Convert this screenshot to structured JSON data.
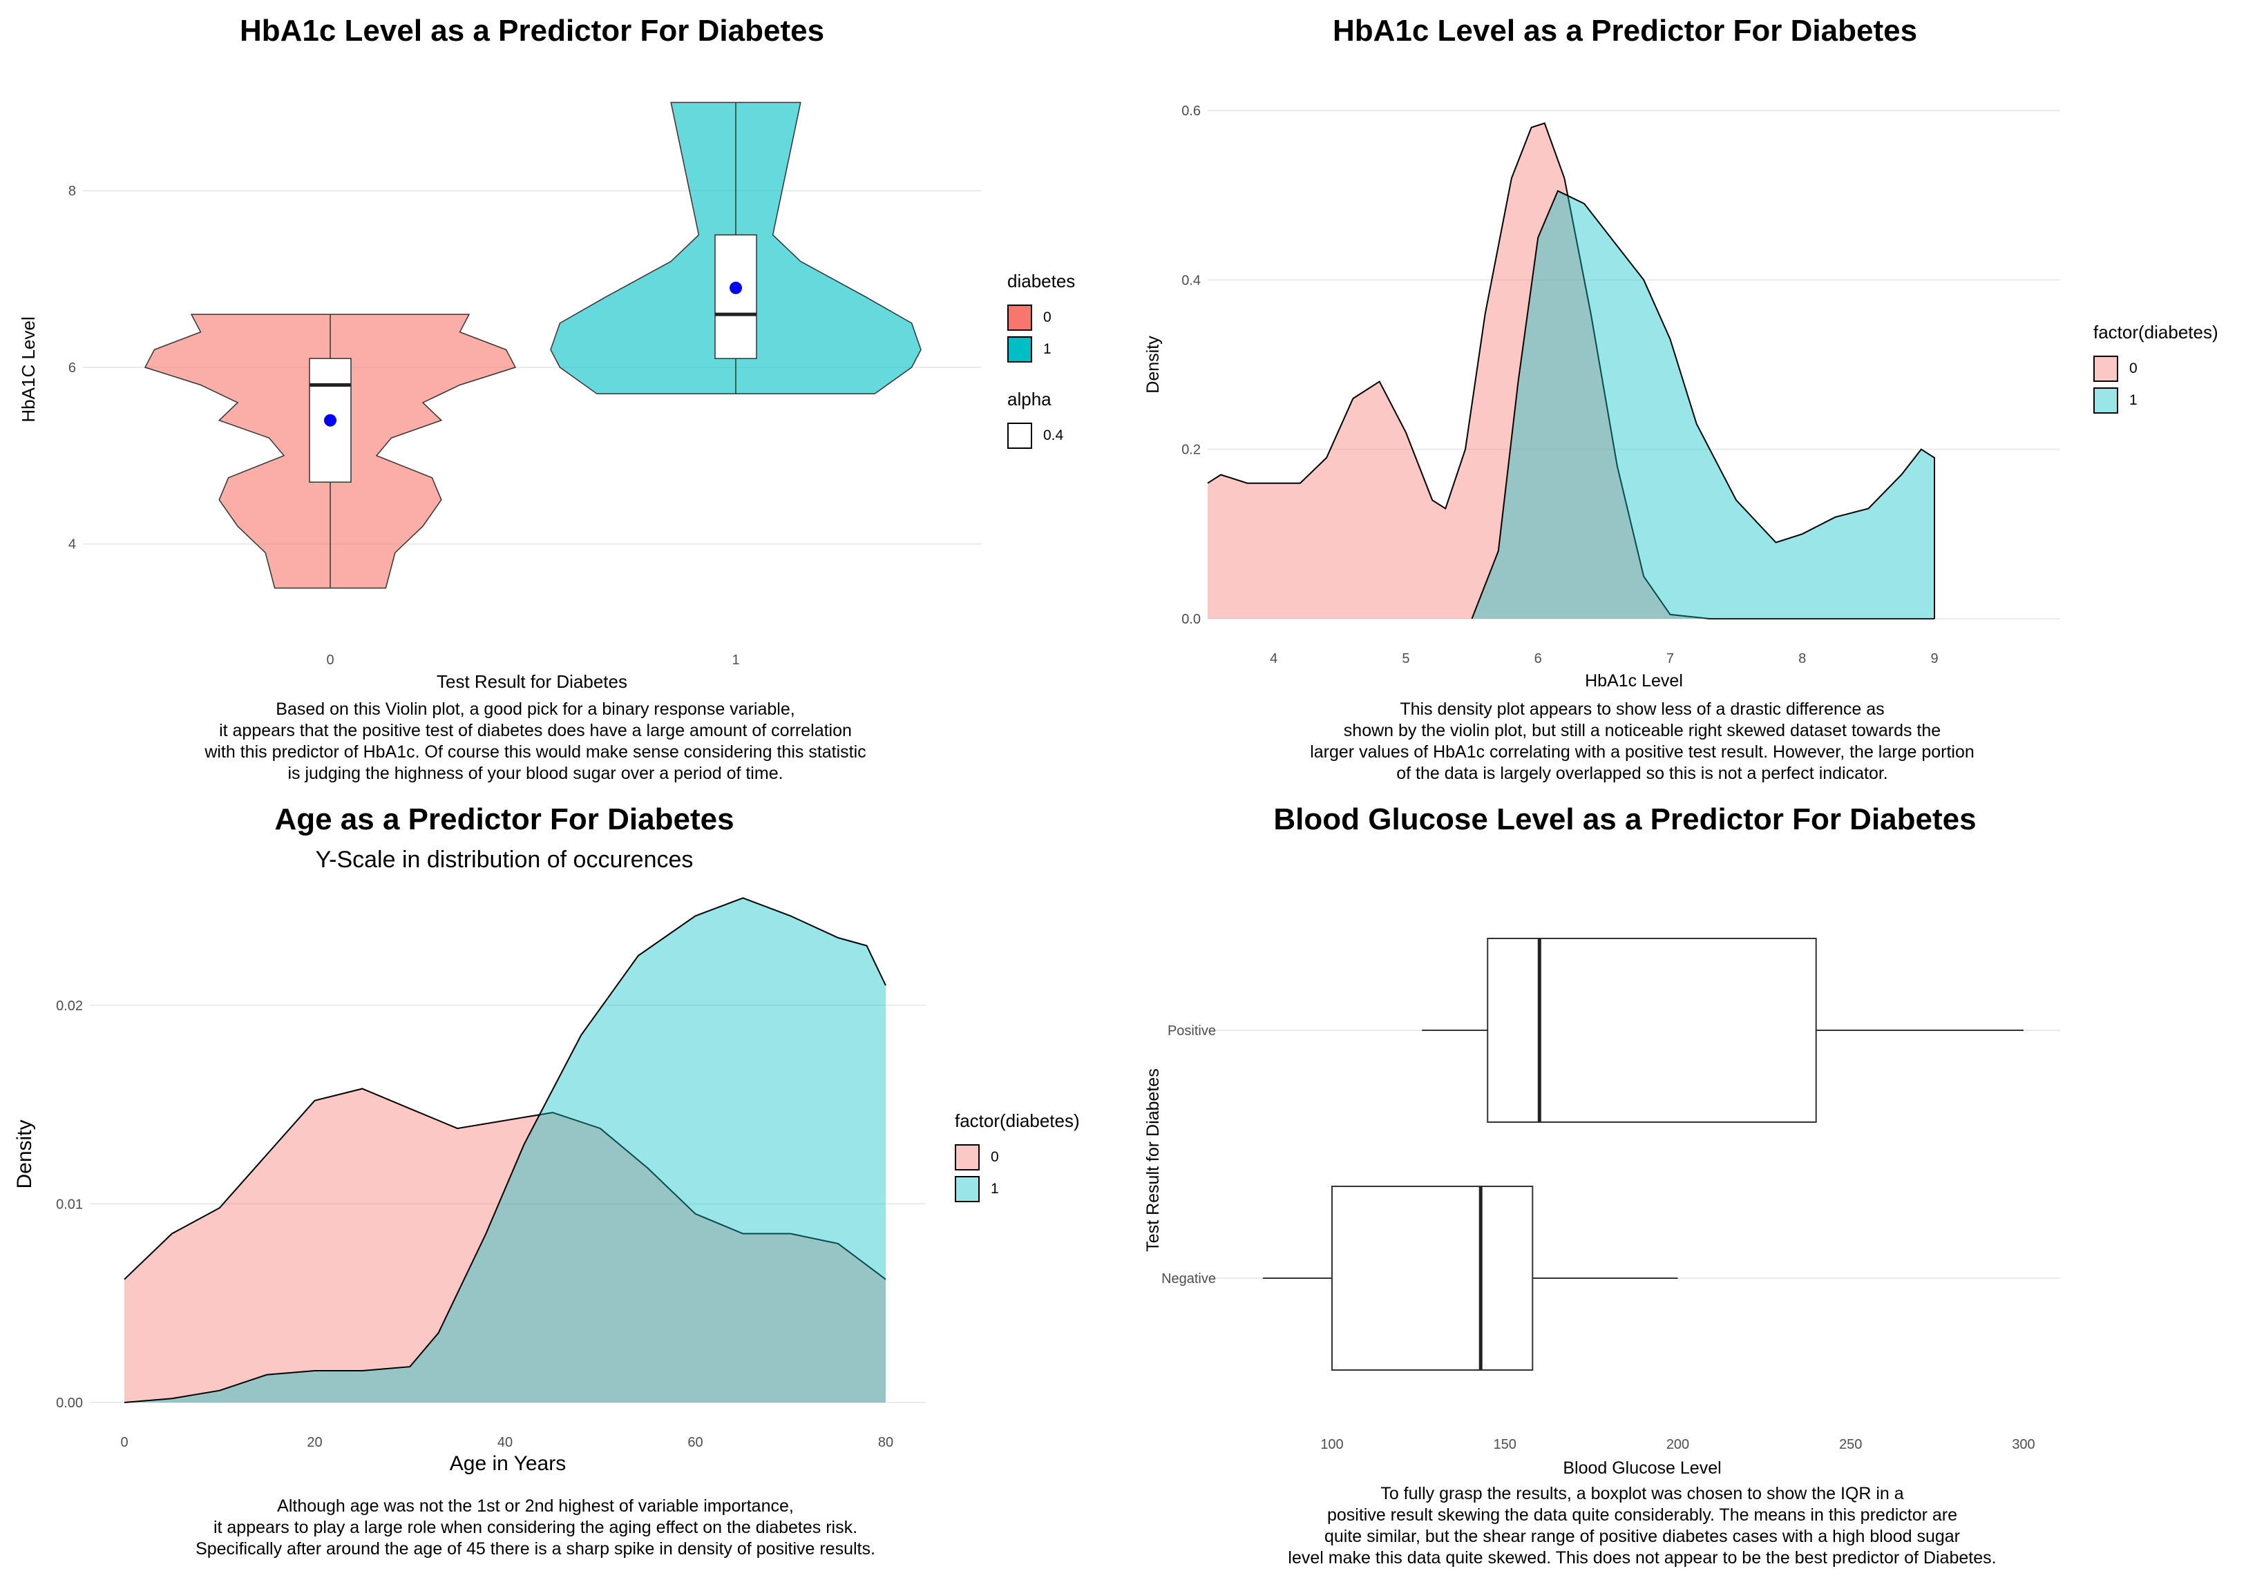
{
  "chart_data": [
    {
      "id": "violin",
      "type": "violin",
      "title": "HbA1c Level as a Predictor For Diabetes",
      "xlabel": "Test Result for Diabetes",
      "ylabel": "HbA1C Level",
      "categories": [
        "0",
        "1"
      ],
      "yticks": [
        4,
        6,
        8
      ],
      "ylim": [
        3.2,
        9.3
      ],
      "colors": {
        "0": "#F8766D",
        "1": "#00BFC4"
      },
      "series": [
        {
          "name": "0",
          "min": 3.5,
          "q1": 4.7,
          "median": 5.8,
          "q3": 6.1,
          "max": 6.6,
          "mean": 5.4,
          "profile": [
            [
              3.5,
              0.3
            ],
            [
              3.9,
              0.35
            ],
            [
              4.2,
              0.5
            ],
            [
              4.5,
              0.6
            ],
            [
              4.75,
              0.55
            ],
            [
              5.0,
              0.25
            ],
            [
              5.2,
              0.33
            ],
            [
              5.4,
              0.6
            ],
            [
              5.6,
              0.5
            ],
            [
              5.8,
              0.7
            ],
            [
              6.0,
              1.0
            ],
            [
              6.2,
              0.95
            ],
            [
              6.4,
              0.7
            ],
            [
              6.6,
              0.75
            ]
          ]
        },
        {
          "name": "1",
          "min": 5.7,
          "q1": 6.1,
          "median": 6.6,
          "q3": 7.5,
          "max": 9.0,
          "mean": 6.9,
          "profile": [
            [
              5.7,
              0.75
            ],
            [
              6.0,
              0.95
            ],
            [
              6.2,
              1.0
            ],
            [
              6.5,
              0.95
            ],
            [
              6.8,
              0.7
            ],
            [
              7.2,
              0.35
            ],
            [
              7.5,
              0.2
            ],
            [
              8.0,
              0.25
            ],
            [
              8.5,
              0.3
            ],
            [
              9.0,
              0.35
            ]
          ]
        }
      ],
      "legend": {
        "title": "diabetes",
        "items": [
          "0",
          "1"
        ],
        "alpha_title": "alpha",
        "alpha_value": "0.4"
      },
      "caption": [
        "Based on this Violin plot, a good pick for a binary response variable,",
        "it appears that the positive test of diabetes does have a large amount of correlation",
        "with this predictor of HbA1c. Of course this would make sense considering this statistic",
        "is judging the highness of your blood sugar over a period of time."
      ]
    },
    {
      "id": "hba1c_density",
      "type": "area",
      "title": "HbA1c Level as a Predictor For Diabetes",
      "xlabel": "HbA1c Level",
      "ylabel": "Density",
      "xlim": [
        3.5,
        9.0
      ],
      "ylim": [
        0,
        0.6
      ],
      "xticks": [
        4,
        5,
        6,
        7,
        8,
        9
      ],
      "yticks": [
        "0.0",
        "0.2",
        "0.4",
        "0.6"
      ],
      "series": [
        {
          "name": "0",
          "color": "#F8766D",
          "points": [
            [
              3.5,
              0.16
            ],
            [
              3.6,
              0.17
            ],
            [
              3.8,
              0.16
            ],
            [
              4.0,
              0.16
            ],
            [
              4.2,
              0.16
            ],
            [
              4.4,
              0.19
            ],
            [
              4.6,
              0.26
            ],
            [
              4.8,
              0.28
            ],
            [
              5.0,
              0.22
            ],
            [
              5.2,
              0.14
            ],
            [
              5.3,
              0.13
            ],
            [
              5.45,
              0.2
            ],
            [
              5.6,
              0.36
            ],
            [
              5.8,
              0.52
            ],
            [
              5.95,
              0.58
            ],
            [
              6.05,
              0.585
            ],
            [
              6.2,
              0.52
            ],
            [
              6.4,
              0.36
            ],
            [
              6.6,
              0.18
            ],
            [
              6.8,
              0.05
            ],
            [
              7.0,
              0.005
            ],
            [
              7.3,
              0.0
            ],
            [
              9.0,
              0.0
            ]
          ]
        },
        {
          "name": "1",
          "color": "#00BFC4",
          "points": [
            [
              5.5,
              0.0
            ],
            [
              5.7,
              0.08
            ],
            [
              5.85,
              0.28
            ],
            [
              6.0,
              0.45
            ],
            [
              6.15,
              0.505
            ],
            [
              6.35,
              0.49
            ],
            [
              6.6,
              0.44
            ],
            [
              6.8,
              0.4
            ],
            [
              7.0,
              0.33
            ],
            [
              7.2,
              0.23
            ],
            [
              7.5,
              0.14
            ],
            [
              7.8,
              0.09
            ],
            [
              8.0,
              0.1
            ],
            [
              8.25,
              0.12
            ],
            [
              8.5,
              0.13
            ],
            [
              8.75,
              0.17
            ],
            [
              8.9,
              0.2
            ],
            [
              9.0,
              0.19
            ],
            [
              9.0,
              0.0
            ]
          ]
        }
      ],
      "legend": {
        "title": "factor(diabetes)",
        "items": [
          "0",
          "1"
        ]
      },
      "caption": [
        "This density plot appears to show less of a drastic difference as",
        "shown by the violin plot, but still a noticeable right skewed dataset towards the",
        "larger values of HbA1c correlating with a positive test result. However, the large portion",
        "of the data is largely overlapped so this is not a perfect indicator."
      ]
    },
    {
      "id": "age_density",
      "type": "area",
      "title": "Age as a Predictor For Diabetes",
      "subtitle": "Y-Scale in distribution of occurences",
      "xlabel": "Age in Years",
      "ylabel": "Density",
      "xlim": [
        0,
        80
      ],
      "ylim": [
        0,
        0.025
      ],
      "xticks": [
        0,
        20,
        40,
        60,
        80
      ],
      "yticks": [
        "0.00",
        "0.01",
        "0.02"
      ],
      "series": [
        {
          "name": "0",
          "color": "#F8766D",
          "points": [
            [
              0,
              0.0062
            ],
            [
              5,
              0.0085
            ],
            [
              10,
              0.0098
            ],
            [
              15,
              0.0125
            ],
            [
              20,
              0.0152
            ],
            [
              25,
              0.0158
            ],
            [
              30,
              0.0148
            ],
            [
              35,
              0.0138
            ],
            [
              40,
              0.0142
            ],
            [
              45,
              0.0146
            ],
            [
              50,
              0.0138
            ],
            [
              55,
              0.0118
            ],
            [
              60,
              0.0095
            ],
            [
              65,
              0.0085
            ],
            [
              70,
              0.0085
            ],
            [
              75,
              0.008
            ],
            [
              80,
              0.0062
            ]
          ]
        },
        {
          "name": "1",
          "color": "#00BFC4",
          "points": [
            [
              0,
              0.0
            ],
            [
              5,
              0.0002
            ],
            [
              10,
              0.0006
            ],
            [
              15,
              0.0014
            ],
            [
              20,
              0.0016
            ],
            [
              25,
              0.0016
            ],
            [
              30,
              0.0018
            ],
            [
              33,
              0.0035
            ],
            [
              38,
              0.0085
            ],
            [
              42,
              0.013
            ],
            [
              48,
              0.0185
            ],
            [
              54,
              0.0225
            ],
            [
              60,
              0.0245
            ],
            [
              65,
              0.0254
            ],
            [
              70,
              0.0245
            ],
            [
              75,
              0.0234
            ],
            [
              78,
              0.023
            ],
            [
              80,
              0.021
            ]
          ]
        }
      ],
      "legend": {
        "title": "factor(diabetes)",
        "items": [
          "0",
          "1"
        ]
      },
      "caption": [
        "Although age was not the 1st or 2nd highest of variable importance,",
        "it appears to play a large role when considering the aging effect on the diabetes risk.",
        "Specifically after around the age of 45 there is a sharp spike in density of positive results."
      ]
    },
    {
      "id": "glucose_box",
      "type": "box",
      "title": "Blood Glucose Level as a Predictor For Diabetes",
      "xlabel": "Blood Glucose Level",
      "ylabel": "Test Result for Diabetes",
      "xlim": [
        80,
        310
      ],
      "xticks": [
        100,
        150,
        200,
        250,
        300
      ],
      "categories": [
        "Negative",
        "Positive"
      ],
      "series": [
        {
          "name": "Negative",
          "min": 80,
          "q1": 100,
          "median": 143,
          "q3": 158,
          "max": 200
        },
        {
          "name": "Positive",
          "min": 126,
          "q1": 145,
          "median": 160,
          "q3": 240,
          "max": 300
        }
      ],
      "caption": [
        "To fully grasp the results, a boxplot was chosen to show the IQR in a",
        "positive result skewing the data quite considerably. The means in this predictor are",
        "quite similar, but the shear range of positive diabetes cases with a high blood sugar",
        "level make this data quite skewed. This does not appear to be the best predictor of Diabetes."
      ]
    }
  ]
}
